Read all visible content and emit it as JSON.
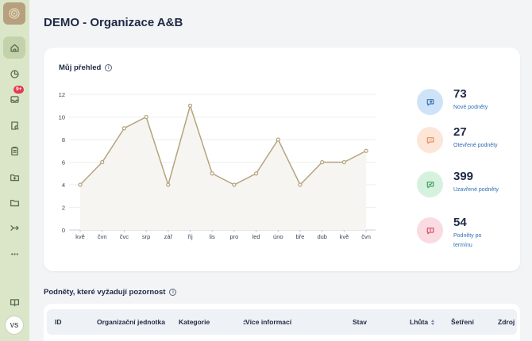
{
  "page": {
    "title": "DEMO - Organizace A&B"
  },
  "sidebar": {
    "items": [
      {
        "name": "home-icon"
      },
      {
        "name": "pie-chart-icon"
      },
      {
        "name": "inbox-icon",
        "badge": "9+"
      },
      {
        "name": "document-search-icon"
      },
      {
        "name": "clipboard-icon"
      },
      {
        "name": "folder-add-icon"
      },
      {
        "name": "folder-icon"
      },
      {
        "name": "forward-icon"
      },
      {
        "name": "more-icon"
      },
      {
        "name": "book-icon"
      }
    ],
    "avatar": "VS"
  },
  "overview": {
    "title": "Můj přehled",
    "stats": [
      {
        "value": "73",
        "label": "Nové podněty",
        "color": "#2f6fb3",
        "bg": "#cfe3f8",
        "icon": "chat-arrow-icon"
      },
      {
        "value": "27",
        "label": "Otevřené podněty",
        "color": "#e08a5a",
        "bg": "#fde6d8",
        "icon": "chat-dots-icon"
      },
      {
        "value": "399",
        "label": "Uzavřené podněty",
        "color": "#3a9a5e",
        "bg": "#d6f2df",
        "icon": "chat-check-icon"
      },
      {
        "value": "54",
        "label": "Podněty po termínu",
        "color": "#d9455f",
        "bg": "#fadbe1",
        "icon": "chat-alert-icon"
      }
    ]
  },
  "chart_data": {
    "type": "area",
    "categories": [
      "kvě",
      "čvn",
      "čvc",
      "srp",
      "zář",
      "říj",
      "lis",
      "pro",
      "led",
      "úno",
      "bře",
      "dub",
      "kvě",
      "čvn"
    ],
    "values": [
      4,
      6,
      9,
      10,
      4,
      11,
      5,
      4,
      5,
      8,
      4,
      6,
      6,
      7
    ],
    "ylim": [
      0,
      12
    ],
    "yticks": [
      0,
      2,
      4,
      6,
      8,
      10,
      12
    ],
    "grid": true,
    "line_color": "#b5a47f",
    "fill_color": "#f7f5f1"
  },
  "attention": {
    "title": "Podněty, které vyžadují pozornost",
    "columns": [
      {
        "label": "ID"
      },
      {
        "label": "Organizační jednotka"
      },
      {
        "label": "Kategorie",
        "sortable": true
      },
      {
        "label": "Více informací"
      },
      {
        "label": "Stav"
      },
      {
        "label": "Lhůta",
        "sortable": true
      },
      {
        "label": "Šetření"
      },
      {
        "label": "Zdroj"
      }
    ]
  }
}
